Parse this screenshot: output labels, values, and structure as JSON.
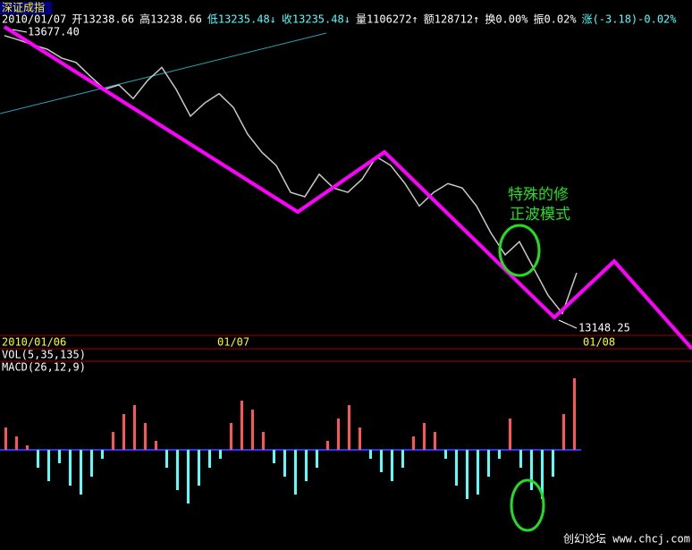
{
  "header": {
    "symbol": "深证成指",
    "fields": [
      {
        "text": "2010/01/07",
        "color": "#ffffff"
      },
      {
        "text": "开13238.66",
        "color": "#ffffff"
      },
      {
        "text": "高13238.66",
        "color": "#ffffff"
      },
      {
        "text": "低13235.48↓",
        "color": "#54ffff"
      },
      {
        "text": "收13235.48↓",
        "color": "#54ffff"
      },
      {
        "text": "量1106272↑",
        "color": "#ffffff"
      },
      {
        "text": "额128712↑",
        "color": "#ffffff"
      },
      {
        "text": "换0.00%",
        "color": "#ffffff"
      },
      {
        "text": "振0.02%",
        "color": "#ffffff"
      },
      {
        "text": "涨(-3.18)-0.02%",
        "color": "#54ffff"
      }
    ]
  },
  "chart_data": {
    "type": "line",
    "color": "#c8c8c8",
    "values": [
      13666,
      13658,
      13649,
      13641,
      13625,
      13617,
      13592,
      13568,
      13576,
      13551,
      13584,
      13608,
      13568,
      13519,
      13543,
      13560,
      13535,
      13486,
      13453,
      13429,
      13380,
      13372,
      13413,
      13388,
      13380,
      13404,
      13445,
      13429,
      13396,
      13355,
      13380,
      13396,
      13388,
      13355,
      13306,
      13266,
      13290,
      13241,
      13192,
      13159,
      13233
    ],
    "ylim": [
      13682,
      13119
    ],
    "high_label": "13677.40",
    "low_label": "13148.25",
    "x_labels": [
      "2010/01/06",
      "01/07",
      "01/08"
    ],
    "annotation": [
      "特殊的修",
      "正波模式"
    ]
  },
  "indicators": {
    "vol": "VOL(5,35,135)",
    "macd": "MACD(26,12,9)",
    "macd_values": [
      25,
      15,
      5,
      -20,
      -35,
      -15,
      -40,
      -50,
      -30,
      -10,
      20,
      40,
      50,
      30,
      10,
      -20,
      -45,
      -60,
      -40,
      -20,
      -10,
      30,
      55,
      45,
      20,
      -15,
      -30,
      -50,
      -35,
      -20,
      10,
      35,
      50,
      25,
      -10,
      -25,
      -35,
      -20,
      15,
      30,
      20,
      -10,
      -40,
      -55,
      -50,
      -30,
      -10,
      35,
      -20,
      -45,
      -55,
      -30,
      40,
      80
    ],
    "macd_ylim": [
      -80,
      80
    ],
    "up_color": "#ff5454",
    "down_color": "#54ffff"
  },
  "watermark": "创幻论坛 www.chcj.com"
}
